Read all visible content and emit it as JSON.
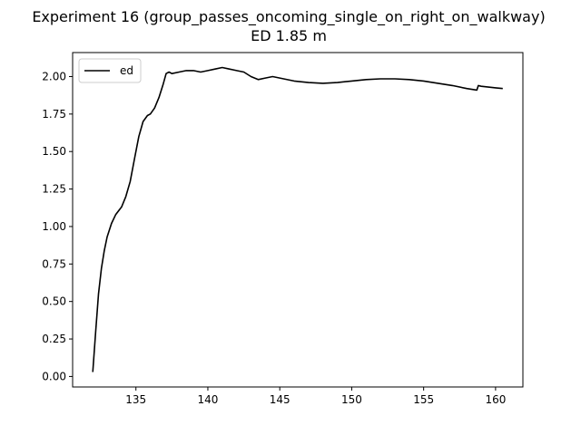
{
  "chart_data": {
    "type": "line",
    "title": "Experiment 16 (group_passes_oncoming_single_on_right_on_walkway)",
    "subtitle": "ED 1.85 m",
    "xlabel": "",
    "ylabel": "",
    "xlim": [
      130.6,
      161.9
    ],
    "ylim": [
      -0.07,
      2.16
    ],
    "xticks": [
      135,
      140,
      145,
      150,
      155,
      160
    ],
    "yticks": [
      0.0,
      0.25,
      0.5,
      0.75,
      1.0,
      1.25,
      1.5,
      1.75,
      2.0
    ],
    "ytick_labels": [
      "0.00",
      "0.25",
      "0.50",
      "0.75",
      "1.00",
      "1.25",
      "1.50",
      "1.75",
      "2.00"
    ],
    "grid": false,
    "legend_position": "upper-left",
    "series": [
      {
        "name": "ed",
        "color": "#000000",
        "x": [
          132.0,
          132.2,
          132.4,
          132.6,
          132.8,
          133.0,
          133.3,
          133.6,
          134.0,
          134.3,
          134.6,
          134.9,
          135.2,
          135.5,
          135.8,
          136.0,
          136.3,
          136.6,
          136.9,
          137.1,
          137.3,
          137.5,
          138.0,
          138.5,
          139.0,
          139.5,
          140.0,
          140.5,
          141.0,
          141.5,
          142.0,
          142.5,
          143.0,
          143.5,
          144.0,
          144.5,
          145.0,
          146.0,
          147.0,
          148.0,
          149.0,
          150.0,
          151.0,
          152.0,
          153.0,
          154.0,
          155.0,
          156.0,
          157.0,
          158.0,
          158.7,
          158.8,
          159.0,
          159.5,
          160.0,
          160.5
        ],
        "y": [
          0.03,
          0.3,
          0.55,
          0.72,
          0.84,
          0.93,
          1.02,
          1.08,
          1.13,
          1.2,
          1.3,
          1.45,
          1.6,
          1.7,
          1.74,
          1.75,
          1.79,
          1.86,
          1.95,
          2.02,
          2.03,
          2.02,
          2.03,
          2.04,
          2.04,
          2.03,
          2.04,
          2.05,
          2.06,
          2.05,
          2.04,
          2.03,
          2.0,
          1.98,
          1.99,
          2.0,
          1.99,
          1.97,
          1.96,
          1.955,
          1.96,
          1.97,
          1.98,
          1.985,
          1.985,
          1.98,
          1.97,
          1.955,
          1.94,
          1.92,
          1.91,
          1.94,
          1.935,
          1.93,
          1.925,
          1.92
        ]
      }
    ]
  }
}
